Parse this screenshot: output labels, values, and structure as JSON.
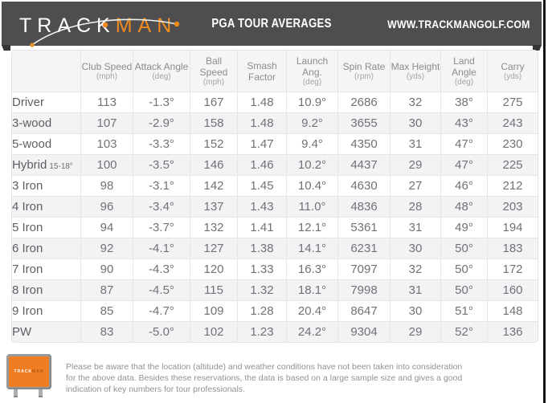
{
  "header": {
    "logo_track": "TRACK",
    "logo_man": "MAN",
    "title": "PGA TOUR AVERAGES",
    "website": "WWW.TRACKMANGOLF.COM"
  },
  "colors": {
    "banner_bg": "#4e4e50",
    "banner_tab_dark": "#353537",
    "brand_orange": "#ef8b1f",
    "row_alt_bg": "#f3f3f5",
    "table_border": "#e2e2e4"
  },
  "table": {
    "columns": [
      {
        "label": "Club Speed",
        "unit": "(mph)"
      },
      {
        "label": "Attack Angle",
        "unit": "(deg)"
      },
      {
        "label": "Ball Speed",
        "unit": "(mph)"
      },
      {
        "label": "Smash Factor",
        "unit": ""
      },
      {
        "label": "Launch Ang.",
        "unit": "(deg)"
      },
      {
        "label": "Spin Rate",
        "unit": "(rpm)"
      },
      {
        "label": "Max Height",
        "unit": "(yds)"
      },
      {
        "label": "Land Angle",
        "unit": "(deg)"
      },
      {
        "label": "Carry",
        "unit": "(yds)"
      }
    ],
    "rows": [
      {
        "club": "Driver",
        "club_note": "",
        "values": [
          "113",
          "-1.3°",
          "167",
          "1.48",
          "10.9°",
          "2686",
          "32",
          "38°",
          "275"
        ]
      },
      {
        "club": "3-wood",
        "club_note": "",
        "values": [
          "107",
          "-2.9°",
          "158",
          "1.48",
          "9.2°",
          "3655",
          "30",
          "43°",
          "243"
        ]
      },
      {
        "club": "5-wood",
        "club_note": "",
        "values": [
          "103",
          "-3.3°",
          "152",
          "1.47",
          "9.4°",
          "4350",
          "31",
          "47°",
          "230"
        ]
      },
      {
        "club": "Hybrid",
        "club_note": "15-18°",
        "values": [
          "100",
          "-3.5°",
          "146",
          "1.46",
          "10.2°",
          "4437",
          "29",
          "47°",
          "225"
        ]
      },
      {
        "club": "3 Iron",
        "club_note": "",
        "values": [
          "98",
          "-3.1°",
          "142",
          "1.45",
          "10.4°",
          "4630",
          "27",
          "46°",
          "212"
        ]
      },
      {
        "club": "4 Iron",
        "club_note": "",
        "values": [
          "96",
          "-3.4°",
          "137",
          "1.43",
          "11.0°",
          "4836",
          "28",
          "48°",
          "203"
        ]
      },
      {
        "club": "5 Iron",
        "club_note": "",
        "values": [
          "94",
          "-3.7°",
          "132",
          "1.41",
          "12.1°",
          "5361",
          "31",
          "49°",
          "194"
        ]
      },
      {
        "club": "6 Iron",
        "club_note": "",
        "values": [
          "92",
          "-4.1°",
          "127",
          "1.38",
          "14.1°",
          "6231",
          "30",
          "50°",
          "183"
        ]
      },
      {
        "club": "7 Iron",
        "club_note": "",
        "values": [
          "90",
          "-4.3°",
          "120",
          "1.33",
          "16.3°",
          "7097",
          "32",
          "50°",
          "172"
        ]
      },
      {
        "club": "8 Iron",
        "club_note": "",
        "values": [
          "87",
          "-4.5°",
          "115",
          "1.32",
          "18.1°",
          "7998",
          "31",
          "50°",
          "160"
        ]
      },
      {
        "club": "9 Iron",
        "club_note": "",
        "values": [
          "85",
          "-4.7°",
          "109",
          "1.28",
          "20.4°",
          "8647",
          "30",
          "51°",
          "148"
        ]
      },
      {
        "club": "PW",
        "club_note": "",
        "values": [
          "83",
          "-5.0°",
          "102",
          "1.23",
          "24.2°",
          "9304",
          "29",
          "52°",
          "136"
        ]
      }
    ]
  },
  "footer": {
    "device_logo_track": "TRACK",
    "device_logo_man": "MAN",
    "disclaimer": "Please be aware that the location (altitude) and weather conditions have not been taken into consideration for the above data. Besides these reservations, the data is based on a large sample size and gives a good indication of key numbers for tour professionals."
  }
}
